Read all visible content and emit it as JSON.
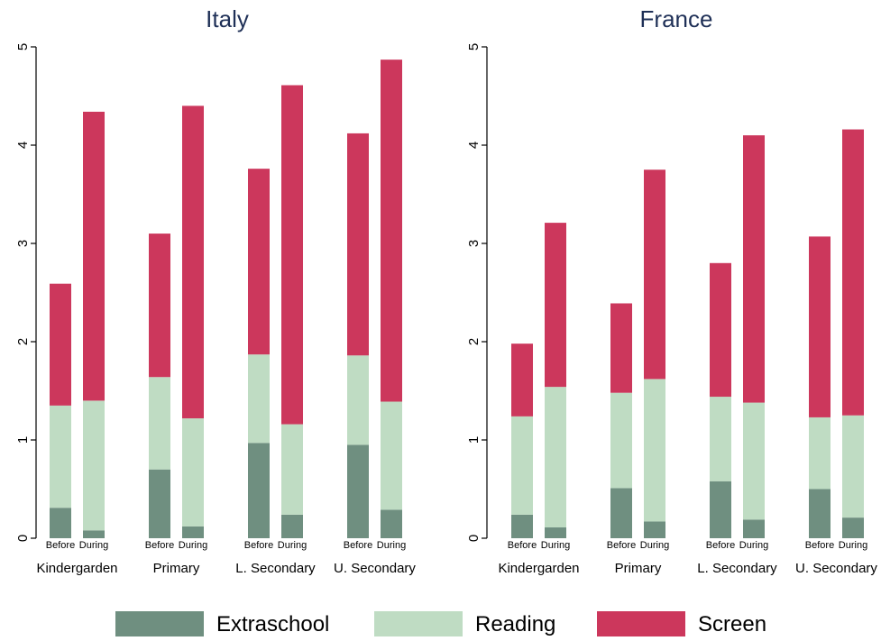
{
  "chart_data": [
    {
      "type": "bar",
      "stacked": true,
      "title": "Italy",
      "groups": [
        "Kindergarden",
        "Primary",
        "L. Secondary",
        "U. Secondary"
      ],
      "subcategories": [
        "Before",
        "During"
      ],
      "ylim": [
        0,
        5
      ],
      "yticks": [
        "0",
        "1",
        "2",
        "3",
        "4",
        "5"
      ],
      "series": [
        {
          "name": "Extraschool",
          "color": "#6f8f80",
          "values": [
            [
              0.31,
              0.08
            ],
            [
              0.7,
              0.12
            ],
            [
              0.97,
              0.24
            ],
            [
              0.95,
              0.29
            ]
          ]
        },
        {
          "name": "Reading",
          "color": "#bfdcc3",
          "values": [
            [
              1.04,
              1.32
            ],
            [
              0.94,
              1.1
            ],
            [
              0.9,
              0.92
            ],
            [
              0.91,
              1.1
            ]
          ]
        },
        {
          "name": "Screen",
          "color": "#cc375c",
          "values": [
            [
              1.24,
              2.94
            ],
            [
              1.46,
              3.18
            ],
            [
              1.89,
              3.45
            ],
            [
              2.26,
              3.48
            ]
          ]
        }
      ]
    },
    {
      "type": "bar",
      "stacked": true,
      "title": "France",
      "groups": [
        "Kindergarden",
        "Primary",
        "L. Secondary",
        "U. Secondary"
      ],
      "subcategories": [
        "Before",
        "During"
      ],
      "ylim": [
        0,
        5
      ],
      "yticks": [
        "0",
        "1",
        "2",
        "3",
        "4",
        "5"
      ],
      "series": [
        {
          "name": "Extraschool",
          "color": "#6f8f80",
          "values": [
            [
              0.24,
              0.11
            ],
            [
              0.51,
              0.17
            ],
            [
              0.58,
              0.19
            ],
            [
              0.5,
              0.21
            ]
          ]
        },
        {
          "name": "Reading",
          "color": "#bfdcc3",
          "values": [
            [
              1.0,
              1.43
            ],
            [
              0.97,
              1.45
            ],
            [
              0.86,
              1.19
            ],
            [
              0.73,
              1.04
            ]
          ]
        },
        {
          "name": "Screen",
          "color": "#cc375c",
          "values": [
            [
              0.74,
              1.67
            ],
            [
              0.91,
              2.13
            ],
            [
              1.36,
              2.72
            ],
            [
              1.84,
              2.91
            ]
          ]
        }
      ]
    }
  ],
  "legend": {
    "placement": "bottom",
    "items": [
      {
        "label": "Extraschool",
        "color": "#6f8f80"
      },
      {
        "label": "Reading",
        "color": "#bfdcc3"
      },
      {
        "label": "Screen",
        "color": "#cc375c"
      }
    ]
  },
  "colors": {
    "title": "#1f3057",
    "axis": "#000000",
    "background": "#ffffff"
  }
}
